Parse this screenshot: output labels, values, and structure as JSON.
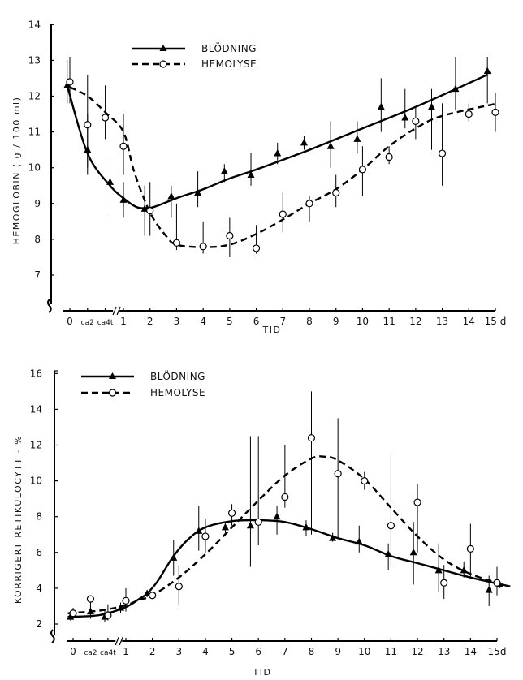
{
  "chart_data": [
    {
      "type": "line",
      "title": "",
      "xlabel": "TID",
      "ylabel": "HEMOGLOBIN  ( g / 100 ml)",
      "x_ticks": [
        {
          "x": 0,
          "label": "0"
        },
        {
          "x": 0.33,
          "label": "ca2"
        },
        {
          "x": 0.66,
          "label": "ca4t"
        },
        {
          "x": 1,
          "label": "1"
        },
        {
          "x": 2,
          "label": "2"
        },
        {
          "x": 3,
          "label": "3"
        },
        {
          "x": 4,
          "label": "4"
        },
        {
          "x": 5,
          "label": "5"
        },
        {
          "x": 6,
          "label": "6"
        },
        {
          "x": 7,
          "label": "7"
        },
        {
          "x": 8,
          "label": "8"
        },
        {
          "x": 9,
          "label": "9"
        },
        {
          "x": 10,
          "label": "10"
        },
        {
          "x": 11,
          "label": "11"
        },
        {
          "x": 12,
          "label": "12"
        },
        {
          "x": 13,
          "label": "13"
        },
        {
          "x": 14,
          "label": "14"
        },
        {
          "x": 15,
          "label": "15 d"
        }
      ],
      "y_ticks": [
        7,
        8,
        9,
        10,
        11,
        12,
        13,
        14
      ],
      "ylim": [
        6.0,
        14
      ],
      "xlim": [
        -0.1,
        15.2
      ],
      "axis_break": true,
      "grid": false,
      "legend": {
        "placement": "top-center",
        "entries": [
          {
            "name": "BLÖDNING",
            "style": "solid",
            "marker": "triangle"
          },
          {
            "name": "HEMOLYSE",
            "style": "dashed",
            "marker": "circle"
          }
        ]
      },
      "series": [
        {
          "name": "BLÖDNING",
          "marker": "triangle",
          "points": [
            {
              "x": -0.05,
              "y": 12.3,
              "lo": 11.8,
              "hi": 13.0
            },
            {
              "x": 0.33,
              "y": 10.5,
              "lo": 9.8,
              "hi": 11.5
            },
            {
              "x": 0.75,
              "y": 9.6,
              "lo": 8.6,
              "hi": 10.3
            },
            {
              "x": 1.0,
              "y": 9.1,
              "lo": 8.6,
              "hi": 9.6
            },
            {
              "x": 1.8,
              "y": 8.85,
              "lo": 8.1,
              "hi": 9.5
            },
            {
              "x": 2.8,
              "y": 9.2,
              "lo": 8.6,
              "hi": 9.5
            },
            {
              "x": 3.8,
              "y": 9.3,
              "lo": 8.9,
              "hi": 9.9
            },
            {
              "x": 4.8,
              "y": 9.9,
              "lo": 9.6,
              "hi": 10.1
            },
            {
              "x": 5.8,
              "y": 9.8,
              "lo": 9.5,
              "hi": 10.4
            },
            {
              "x": 6.8,
              "y": 10.4,
              "lo": 10.1,
              "hi": 10.7
            },
            {
              "x": 7.8,
              "y": 10.7,
              "lo": 10.5,
              "hi": 10.9
            },
            {
              "x": 8.8,
              "y": 10.6,
              "lo": 10.0,
              "hi": 11.3
            },
            {
              "x": 9.8,
              "y": 10.8,
              "lo": 10.4,
              "hi": 11.3
            },
            {
              "x": 10.7,
              "y": 11.7,
              "lo": 11.0,
              "hi": 12.5
            },
            {
              "x": 11.6,
              "y": 11.4,
              "lo": 11.1,
              "hi": 12.2
            },
            {
              "x": 12.6,
              "y": 11.7,
              "lo": 10.5,
              "hi": 12.2
            },
            {
              "x": 13.5,
              "y": 12.2,
              "lo": 11.6,
              "hi": 13.1
            },
            {
              "x": 14.7,
              "y": 12.7,
              "lo": 11.8,
              "hi": 13.1
            }
          ],
          "curve": [
            [
              -0.05,
              12.3
            ],
            [
              0.33,
              10.4
            ],
            [
              0.75,
              9.5
            ],
            [
              1.0,
              9.15
            ],
            [
              1.5,
              8.9
            ],
            [
              2.0,
              8.88
            ],
            [
              2.5,
              9.0
            ],
            [
              3.0,
              9.15
            ],
            [
              4.0,
              9.4
            ],
            [
              5.0,
              9.7
            ],
            [
              6.0,
              9.95
            ],
            [
              8.0,
              10.5
            ],
            [
              10.0,
              11.1
            ],
            [
              12.0,
              11.7
            ],
            [
              14.7,
              12.6
            ]
          ]
        },
        {
          "name": "HEMOLYSE",
          "marker": "circle",
          "points": [
            {
              "x": 0.0,
              "y": 12.4,
              "lo": 11.8,
              "hi": 13.1
            },
            {
              "x": 0.33,
              "y": 11.2,
              "lo": 10.0,
              "hi": 12.6
            },
            {
              "x": 0.66,
              "y": 11.4,
              "lo": 10.8,
              "hi": 12.3
            },
            {
              "x": 1.0,
              "y": 10.6,
              "lo": 9.8,
              "hi": 11.5
            },
            {
              "x": 2.0,
              "y": 8.8,
              "lo": 8.1,
              "hi": 9.6
            },
            {
              "x": 3.0,
              "y": 7.9,
              "lo": 7.7,
              "hi": 9.0
            },
            {
              "x": 4.0,
              "y": 7.8,
              "lo": 7.6,
              "hi": 8.5
            },
            {
              "x": 5.0,
              "y": 8.1,
              "lo": 7.5,
              "hi": 8.6
            },
            {
              "x": 6.0,
              "y": 7.75,
              "lo": 7.6,
              "hi": 8.4
            },
            {
              "x": 7.0,
              "y": 8.7,
              "lo": 8.2,
              "hi": 9.3
            },
            {
              "x": 8.0,
              "y": 9.0,
              "lo": 8.5,
              "hi": 9.2
            },
            {
              "x": 9.0,
              "y": 9.3,
              "lo": 8.9,
              "hi": 9.8
            },
            {
              "x": 10.0,
              "y": 9.95,
              "lo": 9.2,
              "hi": 10.6
            },
            {
              "x": 11.0,
              "y": 10.3,
              "lo": 10.1,
              "hi": 10.6
            },
            {
              "x": 12.0,
              "y": 11.3,
              "lo": 10.8,
              "hi": 11.7
            },
            {
              "x": 13.0,
              "y": 10.4,
              "lo": 9.5,
              "hi": 11.8
            },
            {
              "x": 14.0,
              "y": 11.5,
              "lo": 11.3,
              "hi": 11.8
            },
            {
              "x": 15.0,
              "y": 11.55,
              "lo": 11.0,
              "hi": 12.1
            }
          ],
          "curve": [
            [
              0.0,
              12.25
            ],
            [
              0.33,
              12.0
            ],
            [
              0.66,
              11.55
            ],
            [
              1.0,
              11.0
            ],
            [
              1.4,
              9.9
            ],
            [
              2.0,
              8.75
            ],
            [
              2.6,
              8.1
            ],
            [
              3.0,
              7.85
            ],
            [
              4.0,
              7.78
            ],
            [
              5.0,
              7.85
            ],
            [
              6.0,
              8.15
            ],
            [
              7.0,
              8.55
            ],
            [
              8.0,
              9.0
            ],
            [
              9.0,
              9.4
            ],
            [
              10.0,
              9.95
            ],
            [
              11.0,
              10.6
            ],
            [
              12.0,
              11.1
            ],
            [
              13.0,
              11.45
            ],
            [
              15.1,
              11.8
            ]
          ]
        }
      ]
    },
    {
      "type": "line",
      "title": "",
      "xlabel": "TID",
      "ylabel": "KORRIGERT  RETIKULOCYTT - %",
      "x_ticks": [
        {
          "x": 0,
          "label": "0"
        },
        {
          "x": 0.33,
          "label": "ca2"
        },
        {
          "x": 0.66,
          "label": "ca4t"
        },
        {
          "x": 1,
          "label": "1"
        },
        {
          "x": 2,
          "label": "2"
        },
        {
          "x": 3,
          "label": "3"
        },
        {
          "x": 4,
          "label": "4"
        },
        {
          "x": 5,
          "label": "5"
        },
        {
          "x": 6,
          "label": "6"
        },
        {
          "x": 7,
          "label": "7"
        },
        {
          "x": 8,
          "label": "8"
        },
        {
          "x": 9,
          "label": "9"
        },
        {
          "x": 10,
          "label": "10"
        },
        {
          "x": 11,
          "label": "11"
        },
        {
          "x": 12,
          "label": "12"
        },
        {
          "x": 13,
          "label": "13"
        },
        {
          "x": 14,
          "label": "14"
        },
        {
          "x": 15,
          "label": "15d"
        }
      ],
      "y_ticks": [
        2,
        4,
        6,
        8,
        10,
        12,
        14,
        16
      ],
      "ylim": [
        1.0,
        16
      ],
      "xlim": [
        -0.1,
        15.5
      ],
      "axis_break": true,
      "grid": false,
      "legend": {
        "placement": "top-left",
        "entries": [
          {
            "name": "BLÖDNING",
            "style": "solid",
            "marker": "triangle"
          },
          {
            "name": "HEMOLYSE",
            "style": "dashed",
            "marker": "circle"
          }
        ]
      },
      "series": [
        {
          "name": "BLÖDNING",
          "marker": "triangle",
          "points": [
            {
              "x": -0.05,
              "y": 2.4,
              "lo": 2.2,
              "hi": 2.6
            },
            {
              "x": 0.33,
              "y": 2.7,
              "lo": 2.3,
              "hi": 3.0
            },
            {
              "x": 0.6,
              "y": 2.4,
              "lo": 2.1,
              "hi": 2.8
            },
            {
              "x": 0.9,
              "y": 2.9,
              "lo": 2.6,
              "hi": 3.2
            },
            {
              "x": 1.8,
              "y": 3.7,
              "lo": 3.5,
              "hi": 3.9
            },
            {
              "x": 2.8,
              "y": 5.7,
              "lo": 4.7,
              "hi": 6.7
            },
            {
              "x": 3.75,
              "y": 7.2,
              "lo": 6.1,
              "hi": 8.6
            },
            {
              "x": 4.75,
              "y": 7.4,
              "lo": 7.1,
              "hi": 7.7
            },
            {
              "x": 5.7,
              "y": 7.5,
              "lo": 5.2,
              "hi": 12.5
            },
            {
              "x": 6.7,
              "y": 8.0,
              "lo": 7.0,
              "hi": 8.6
            },
            {
              "x": 7.8,
              "y": 7.4,
              "lo": 6.9,
              "hi": 7.8
            },
            {
              "x": 8.8,
              "y": 6.8,
              "lo": 6.6,
              "hi": 7.1
            },
            {
              "x": 9.8,
              "y": 6.6,
              "lo": 6.0,
              "hi": 7.5
            },
            {
              "x": 10.9,
              "y": 5.9,
              "lo": 5.0,
              "hi": 6.5
            },
            {
              "x": 11.85,
              "y": 6.0,
              "lo": 4.2,
              "hi": 7.7
            },
            {
              "x": 12.8,
              "y": 5.0,
              "lo": 3.8,
              "hi": 6.5
            },
            {
              "x": 13.75,
              "y": 5.0,
              "lo": 4.6,
              "hi": 5.5
            },
            {
              "x": 14.7,
              "y": 3.9,
              "lo": 3.0,
              "hi": 4.7
            },
            {
              "x": 15.1,
              "y": 4.2,
              "lo": 4.0,
              "hi": 4.4
            }
          ],
          "curve": [
            [
              -0.1,
              2.4
            ],
            [
              0.5,
              2.5
            ],
            [
              1.0,
              2.95
            ],
            [
              1.5,
              3.4
            ],
            [
              1.8,
              3.7
            ],
            [
              2.2,
              4.4
            ],
            [
              2.8,
              5.8
            ],
            [
              3.4,
              6.8
            ],
            [
              4.0,
              7.4
            ],
            [
              5.0,
              7.75
            ],
            [
              6.0,
              7.8
            ],
            [
              7.0,
              7.7
            ],
            [
              8.0,
              7.3
            ],
            [
              9.0,
              6.8
            ],
            [
              10.0,
              6.4
            ],
            [
              11.0,
              5.8
            ],
            [
              12.0,
              5.4
            ],
            [
              13.0,
              5.0
            ],
            [
              14.0,
              4.6
            ],
            [
              15.5,
              4.1
            ]
          ]
        },
        {
          "name": "HEMOLYSE",
          "marker": "circle",
          "points": [
            {
              "x": 0.0,
              "y": 2.6,
              "lo": 2.3,
              "hi": 2.9
            },
            {
              "x": 0.33,
              "y": 3.4,
              "lo": 2.9,
              "hi": 3.6
            },
            {
              "x": 0.66,
              "y": 2.5,
              "lo": 2.2,
              "hi": 3.1
            },
            {
              "x": 1.0,
              "y": 3.3,
              "lo": 2.7,
              "hi": 4.0
            },
            {
              "x": 2.0,
              "y": 3.6,
              "lo": 3.4,
              "hi": 3.8
            },
            {
              "x": 3.0,
              "y": 4.1,
              "lo": 3.1,
              "hi": 5.3
            },
            {
              "x": 4.0,
              "y": 6.9,
              "lo": 6.0,
              "hi": 7.9
            },
            {
              "x": 5.0,
              "y": 8.2,
              "lo": 7.5,
              "hi": 8.7
            },
            {
              "x": 6.0,
              "y": 7.7,
              "lo": 6.4,
              "hi": 12.5
            },
            {
              "x": 7.0,
              "y": 9.1,
              "lo": 8.5,
              "hi": 12.0
            },
            {
              "x": 8.0,
              "y": 12.4,
              "lo": 7.0,
              "hi": 15.0
            },
            {
              "x": 9.0,
              "y": 10.4,
              "lo": 6.8,
              "hi": 13.5
            },
            {
              "x": 10.0,
              "y": 10.0,
              "lo": 9.5,
              "hi": 10.5
            },
            {
              "x": 11.0,
              "y": 7.5,
              "lo": 5.2,
              "hi": 11.5
            },
            {
              "x": 12.0,
              "y": 8.8,
              "lo": 6.0,
              "hi": 9.8
            },
            {
              "x": 13.0,
              "y": 4.3,
              "lo": 3.4,
              "hi": 5.3
            },
            {
              "x": 14.0,
              "y": 6.2,
              "lo": 4.6,
              "hi": 7.6
            },
            {
              "x": 15.0,
              "y": 4.3,
              "lo": 3.6,
              "hi": 5.2
            }
          ],
          "curve": [
            [
              -0.1,
              2.6
            ],
            [
              0.5,
              2.75
            ],
            [
              1.0,
              3.05
            ],
            [
              1.5,
              3.35
            ],
            [
              2.0,
              3.6
            ],
            [
              3.0,
              4.6
            ],
            [
              4.0,
              5.9
            ],
            [
              5.0,
              7.4
            ],
            [
              6.0,
              8.9
            ],
            [
              7.0,
              10.3
            ],
            [
              8.0,
              11.25
            ],
            [
              8.5,
              11.35
            ],
            [
              9.0,
              11.15
            ],
            [
              10.0,
              10.1
            ],
            [
              11.0,
              8.5
            ],
            [
              12.0,
              6.9
            ],
            [
              13.0,
              5.6
            ],
            [
              14.0,
              4.8
            ],
            [
              15.0,
              4.3
            ]
          ]
        }
      ]
    }
  ]
}
